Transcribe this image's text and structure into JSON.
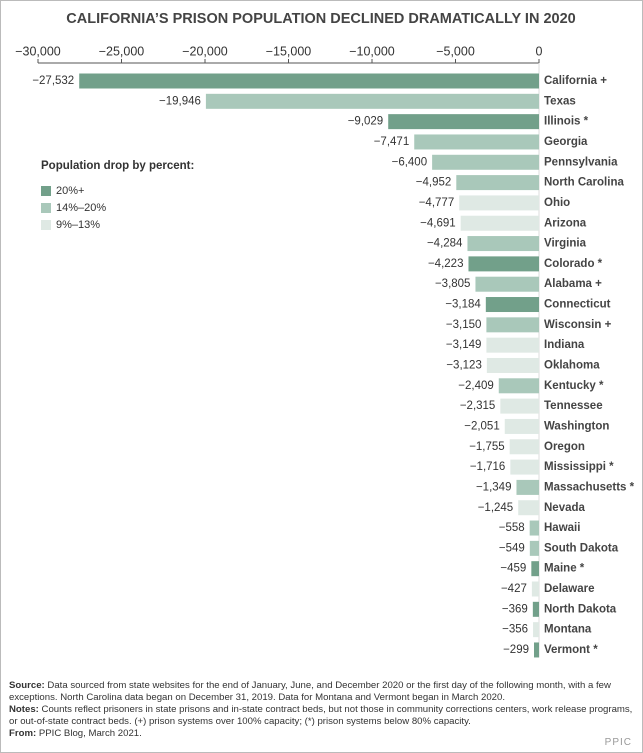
{
  "chart_data": {
    "type": "hbar",
    "title": "CALIFORNIA’S PRISON POPULATION DECLINED DRAMATICALLY IN 2020",
    "categories": [
      "California +",
      "Texas",
      "Illinois *",
      "Georgia",
      "Pennsylvania",
      "North Carolina",
      "Ohio",
      "Arizona",
      "Virginia",
      "Colorado *",
      "Alabama +",
      "Connecticut",
      "Wisconsin +",
      "Indiana",
      "Oklahoma",
      "Kentucky *",
      "Tennessee",
      "Washington",
      "Oregon",
      "Mississippi *",
      "Massachusetts *",
      "Nevada",
      "Hawaii",
      "South Dakota",
      "Maine *",
      "Delaware",
      "North Dakota",
      "Montana",
      "Vermont *"
    ],
    "values": [
      -27532,
      -19946,
      -9029,
      -7471,
      -6400,
      -4952,
      -4777,
      -4691,
      -4284,
      -4223,
      -3805,
      -3184,
      -3150,
      -3149,
      -3123,
      -2409,
      -2315,
      -2051,
      -1755,
      -1716,
      -1349,
      -1245,
      -558,
      -549,
      -459,
      -427,
      -369,
      -356,
      -299
    ],
    "value_labels": [
      "−27,532",
      "−19,946",
      "−9,029",
      "−7,471",
      "−6,400",
      "−4,952",
      "−4,777",
      "−4,691",
      "−4,284",
      "−4,223",
      "−3,805",
      "−3,184",
      "−3,150",
      "−3,149",
      "−3,123",
      "−2,409",
      "−2,315",
      "−2,051",
      "−1,755",
      "−1,716",
      "−1,349",
      "−1,245",
      "−558",
      "−549",
      "−459",
      "−427",
      "−369",
      "−356",
      "−299"
    ],
    "colors": [
      "#72a08a",
      "#a9c8ba",
      "#72a08a",
      "#a9c8ba",
      "#a9c8ba",
      "#a9c8ba",
      "#dfe9e4",
      "#dfe9e4",
      "#a9c8ba",
      "#72a08a",
      "#a9c8ba",
      "#72a08a",
      "#a9c8ba",
      "#dfe9e4",
      "#dfe9e4",
      "#a9c8ba",
      "#dfe9e4",
      "#dfe9e4",
      "#dfe9e4",
      "#dfe9e4",
      "#a9c8ba",
      "#dfe9e4",
      "#a9c8ba",
      "#a9c8ba",
      "#72a08a",
      "#dfe9e4",
      "#72a08a",
      "#dfe9e4",
      "#72a08a"
    ],
    "xlim": [
      -30000,
      0
    ],
    "xticks": [
      {
        "value": -30000,
        "label": "−30,000"
      },
      {
        "value": -25000,
        "label": "−25,000"
      },
      {
        "value": -20000,
        "label": "−20,000"
      },
      {
        "value": -15000,
        "label": "−15,000"
      },
      {
        "value": -10000,
        "label": "−10,000"
      },
      {
        "value": -5000,
        "label": "−5,000"
      },
      0
    ],
    "legend_title": "Population drop by percent:",
    "legend": [
      {
        "name": "20%+",
        "color": "#72a08a"
      },
      {
        "name": "14%–20%",
        "color": "#a9c8ba"
      },
      {
        "name": "9%–13%",
        "color": "#dfe9e4"
      }
    ]
  },
  "footer": {
    "source_label": "Source:",
    "source": "Data sourced from state websites for the end of January, June, and December 2020 or the first day of the following month, with a few exceptions. North Carolina data began on December 31, 2019. Data for Montana and Vermont began in March 2020.",
    "notes_label": "Notes:",
    "notes": "Counts reflect prisoners in state prisons and in-state contract beds, but not those in community corrections centers, work release programs, or out-of-state contract beds. (+) prison systems over 100% capacity; (*) prison systems below 80% capacity.",
    "from_label": "From:",
    "from": "PPIC Blog, March 2021.",
    "logo": "PPIC"
  }
}
